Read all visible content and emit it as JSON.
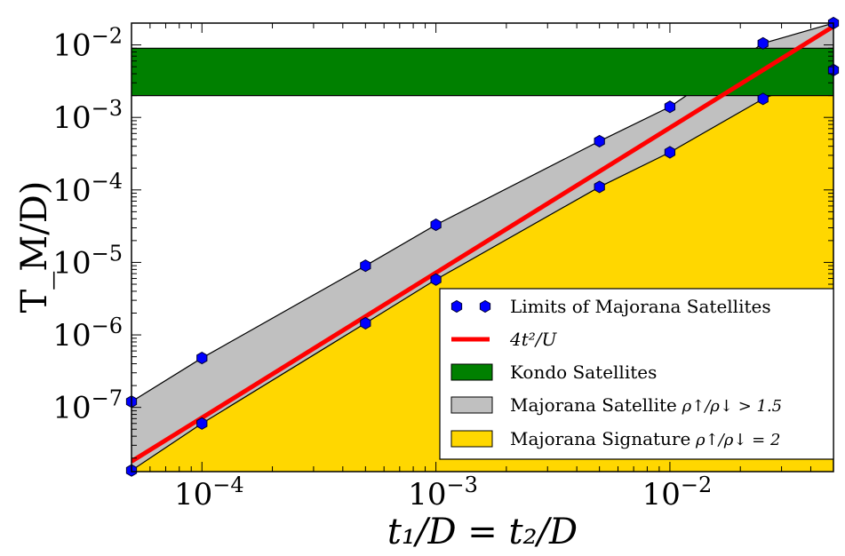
{
  "chart_data": {
    "type": "area",
    "xscale": "log",
    "yscale": "log",
    "xlim": [
      5e-05,
      0.05
    ],
    "ylim": [
      1.3e-08,
      0.02
    ],
    "xlabel": "t₁/D = t₂/D",
    "ylabel": "T_M/D)",
    "xticks": [
      {
        "value": 0.0001,
        "base": "10",
        "exp": "−4"
      },
      {
        "value": 0.001,
        "base": "10",
        "exp": "−3"
      },
      {
        "value": 0.01,
        "base": "10",
        "exp": "−2"
      }
    ],
    "yticks": [
      {
        "value": 1e-07,
        "base": "10",
        "exp": "−7"
      },
      {
        "value": 1e-06,
        "base": "10",
        "exp": "−6"
      },
      {
        "value": 1e-05,
        "base": "10",
        "exp": "−5"
      },
      {
        "value": 0.0001,
        "base": "10",
        "exp": "−4"
      },
      {
        "value": 0.001,
        "base": "10",
        "exp": "−3"
      },
      {
        "value": 0.01,
        "base": "10",
        "exp": "−2"
      }
    ],
    "kondo_band": {
      "y_low": 0.002,
      "y_high": 0.009,
      "color": "#008000"
    },
    "majorana_satellite_upper": {
      "x": [
        5e-05,
        0.0001,
        0.0005,
        0.001,
        0.005,
        0.01,
        0.025,
        0.05
      ],
      "y": [
        1.2e-07,
        4.8e-07,
        9e-06,
        3.3e-05,
        0.00047,
        0.0014,
        0.0105,
        0.02
      ],
      "fill": "#c0c0c0"
    },
    "majorana_signature": {
      "x": [
        5e-05,
        0.0001,
        0.0005,
        0.001,
        0.005,
        0.01,
        0.025,
        0.05
      ],
      "y": [
        1.35e-08,
        6e-08,
        1.45e-06,
        5.8e-06,
        0.00011,
        0.00033,
        0.0018,
        0.0045
      ],
      "fill": "#ffd700"
    },
    "line_4t2U": {
      "x": [
        5e-05,
        0.05
      ],
      "y": [
        1.8e-08,
        0.018
      ],
      "color": "#ff0000"
    },
    "markers": {
      "x": [
        5e-05,
        0.0001,
        0.0005,
        0.001,
        0.005,
        0.01,
        0.025,
        0.05,
        5e-05,
        0.0001,
        0.0005,
        0.001,
        0.005,
        0.01,
        0.025,
        0.05
      ],
      "y": [
        1.2e-07,
        4.8e-07,
        9e-06,
        3.3e-05,
        0.00047,
        0.0014,
        0.0105,
        0.02,
        1.35e-08,
        6e-08,
        1.45e-06,
        5.8e-06,
        0.00011,
        0.00033,
        0.0018,
        0.0045
      ],
      "color": "#0000ff"
    },
    "legend": {
      "placement": "lower-right",
      "items": [
        {
          "kind": "markers",
          "label": "Limits of Majorana Satellites"
        },
        {
          "kind": "line",
          "label": "4t²/U"
        },
        {
          "kind": "patch",
          "color": "#008000",
          "label": "Kondo Satellites"
        },
        {
          "kind": "patch",
          "color": "#c0c0c0",
          "label": "Majorana Satellite",
          "math": "ρ↑/ρ↓ > 1.5"
        },
        {
          "kind": "patch",
          "color": "#ffd700",
          "label": "Majorana Signature",
          "math": "ρ↑/ρ↓ = 2"
        }
      ]
    }
  }
}
